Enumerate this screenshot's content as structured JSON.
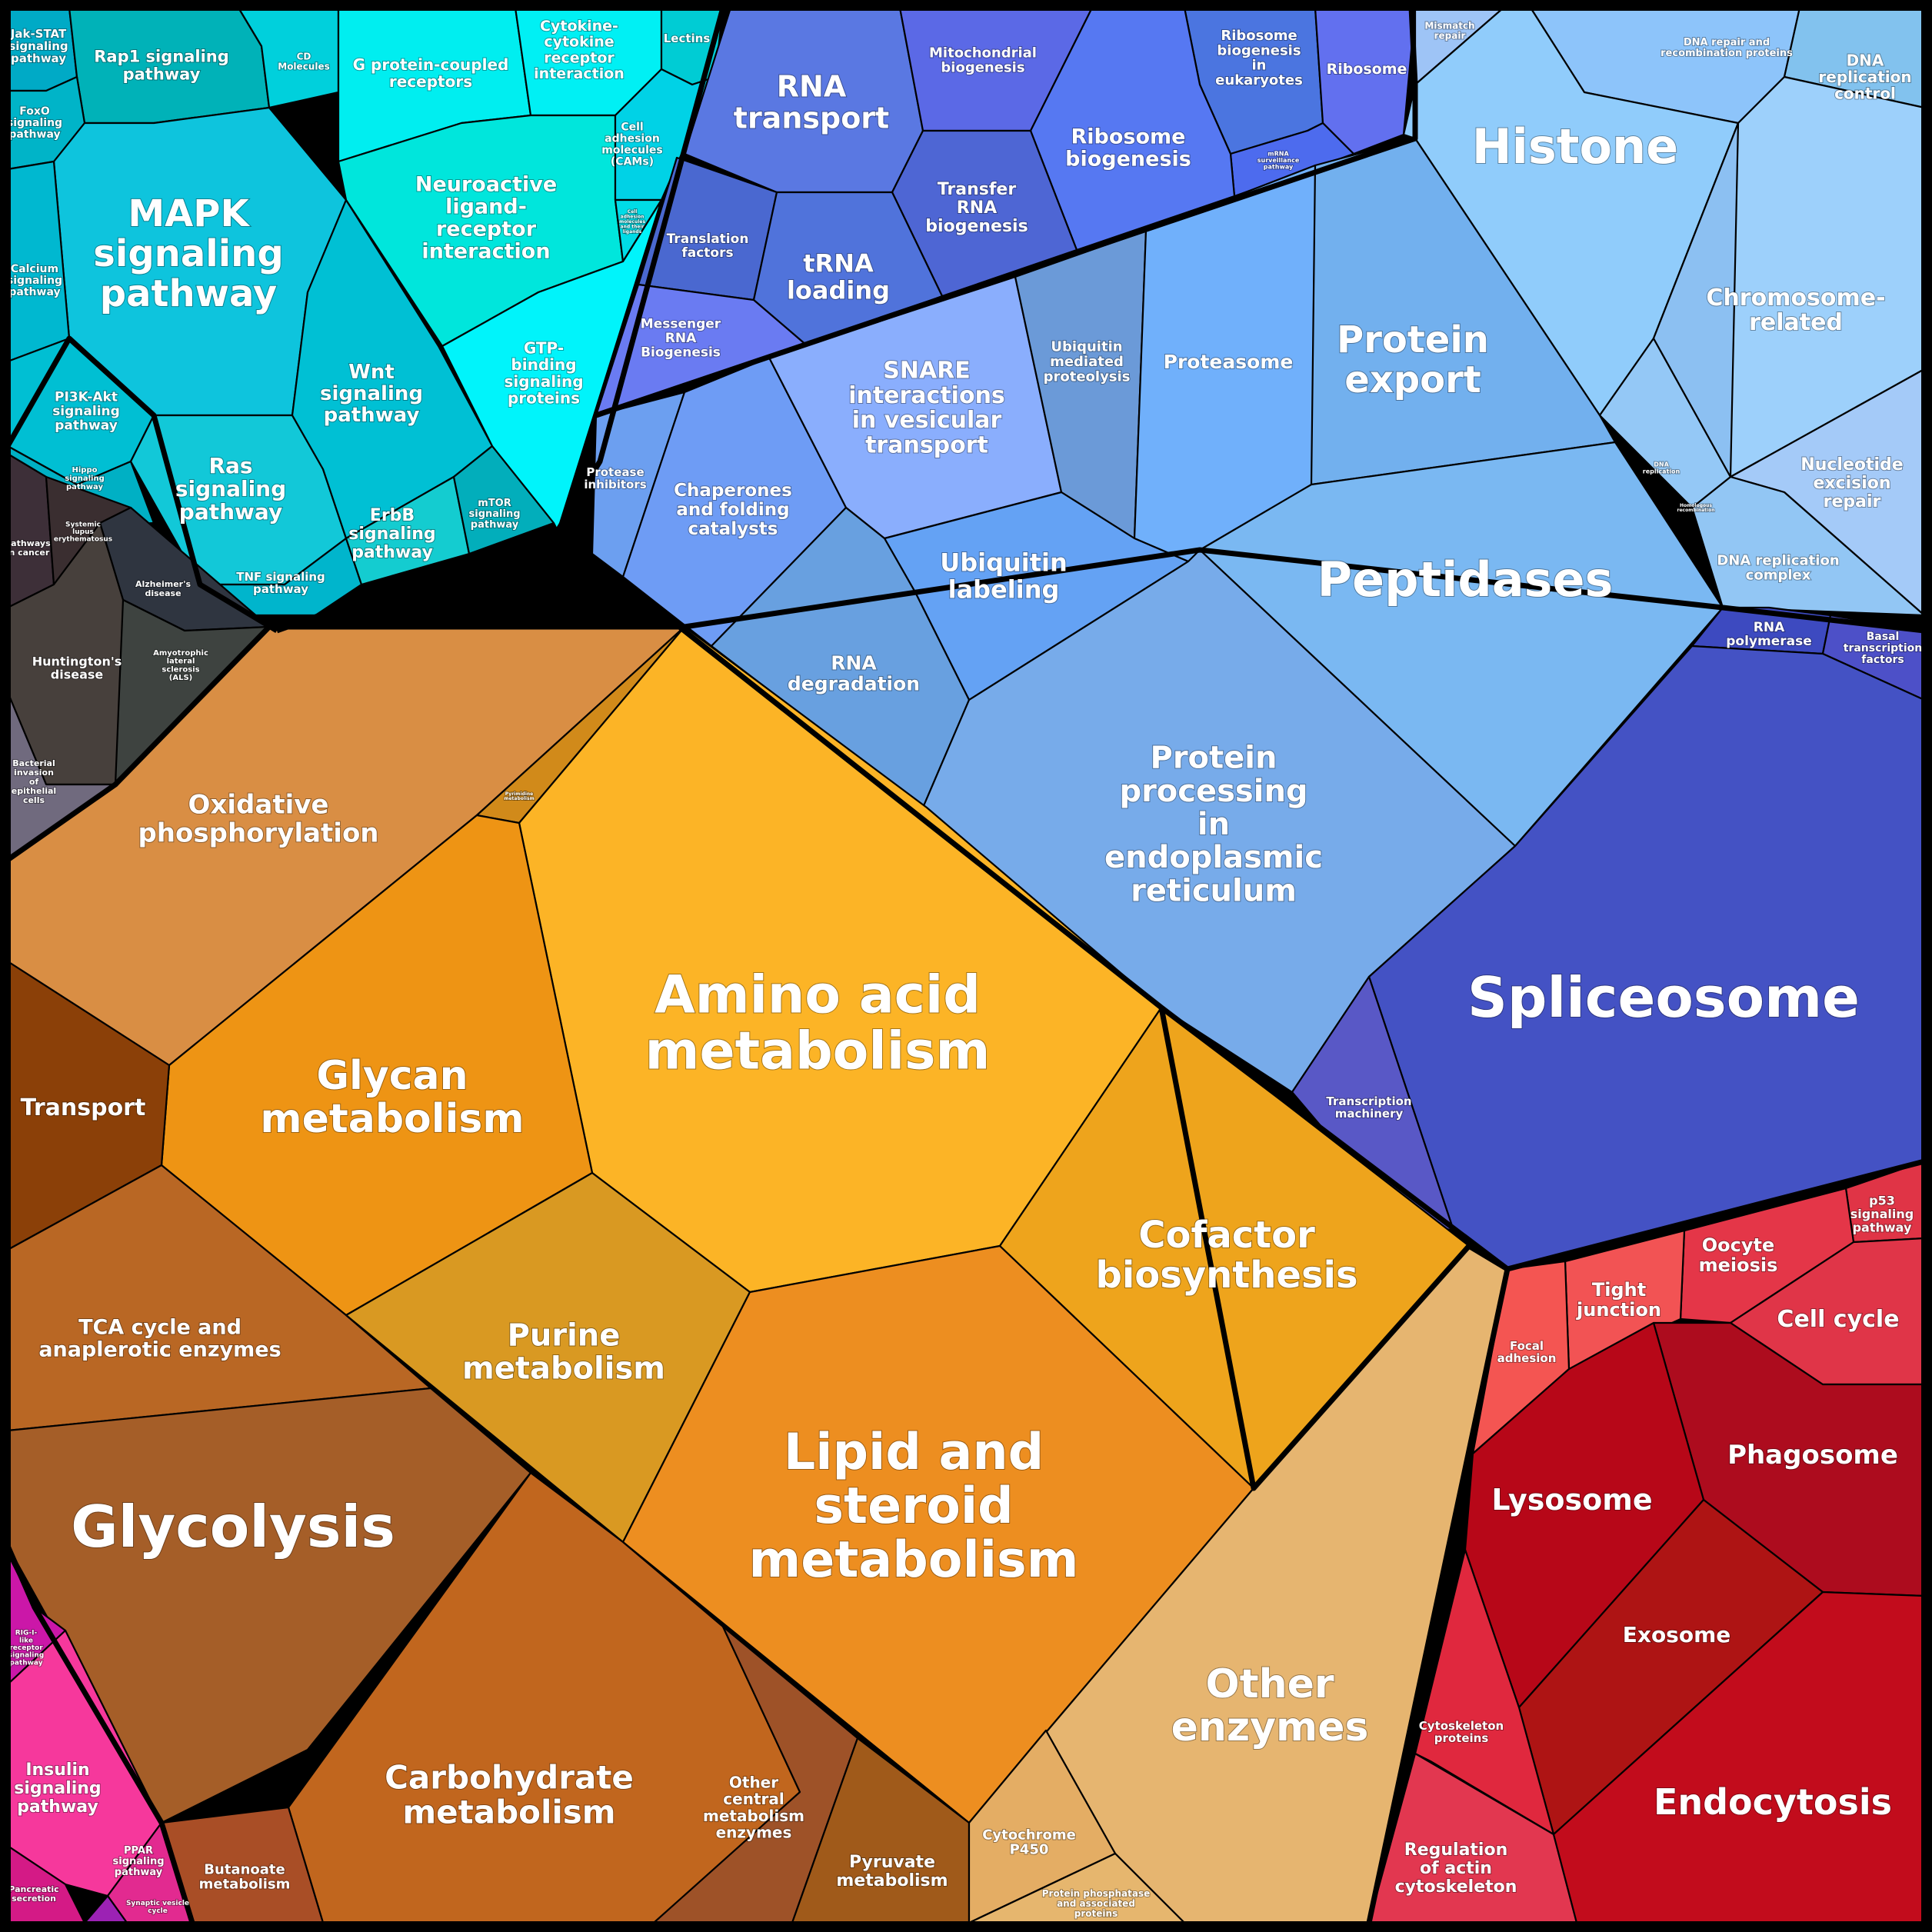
{
  "diagram": {
    "groups": [
      {
        "id": "signaling",
        "color": "#00c9d9"
      },
      {
        "id": "disease",
        "color": "#3a3a3a"
      },
      {
        "id": "genetic-information-processing",
        "color": "#5b7fe6"
      },
      {
        "id": "metabolism",
        "color": "#f0a020"
      },
      {
        "id": "cellular-processes",
        "color": "#c0101e"
      },
      {
        "id": "organismal-systems",
        "color": "#f030a0"
      }
    ],
    "regions": [
      {
        "key": "jak_stat",
        "lines": [
          "Jak-STAT",
          "signaling",
          "pathway"
        ],
        "color": "#00aac6"
      },
      {
        "key": "rap1",
        "lines": [
          "Rap1 signaling",
          "pathway"
        ],
        "color": "#00b2b8"
      },
      {
        "key": "foxo",
        "lines": [
          "FoxO",
          "signaling",
          "pathway"
        ],
        "color": "#00b4c8"
      },
      {
        "key": "mapk",
        "lines": [
          "MAPK",
          "signaling",
          "pathway"
        ],
        "color": "#0ec4dd"
      },
      {
        "key": "calcium",
        "lines": [
          "Calcium",
          "signaling",
          "pathway"
        ],
        "color": "#00b8d0"
      },
      {
        "key": "pi3k",
        "lines": [
          "PI3K-Akt",
          "signaling",
          "pathway"
        ],
        "color": "#00bfd3"
      },
      {
        "key": "hippo",
        "lines": [
          "Hippo",
          "signaling",
          "pathway"
        ],
        "color": "#00b0c4"
      },
      {
        "key": "ras",
        "lines": [
          "Ras",
          "signaling",
          "pathway"
        ],
        "color": "#12c8d8"
      },
      {
        "key": "wnt",
        "lines": [
          "Wnt",
          "signaling",
          "pathway"
        ],
        "color": "#00c0d4"
      },
      {
        "key": "tnf",
        "lines": [
          "TNF signaling",
          "pathway"
        ],
        "color": "#00b5cc"
      },
      {
        "key": "erbb",
        "lines": [
          "ErbB",
          "signaling",
          "pathway"
        ],
        "color": "#14ccd0"
      },
      {
        "key": "mtor",
        "lines": [
          "mTOR",
          "signaling",
          "pathway"
        ],
        "color": "#02aebb"
      },
      {
        "key": "cd",
        "lines": [
          "CD",
          "Molecules"
        ],
        "color": "#00d0dc"
      },
      {
        "key": "gpcr",
        "lines": [
          "G protein-coupled",
          "receptors"
        ],
        "color": "#00eef0"
      },
      {
        "key": "cytokine",
        "lines": [
          "Cytokine-",
          "cytokine",
          "receptor",
          "interaction"
        ],
        "color": "#00f0f4"
      },
      {
        "key": "lectins",
        "lines": [
          "Lectins"
        ],
        "color": "#00ccd4"
      },
      {
        "key": "neuroactive",
        "lines": [
          "Neuroactive",
          "ligand-",
          "receptor",
          "interaction"
        ],
        "color": "#00e6dc"
      },
      {
        "key": "cam",
        "lines": [
          "Cell",
          "adhesion",
          "molecules",
          "(CAMs)"
        ],
        "color": "#00d2e6"
      },
      {
        "key": "cell_adh_small",
        "lines": [
          "Cell",
          "adhesion",
          "molecules",
          "and their",
          "ligands"
        ],
        "color": "#00dce6"
      },
      {
        "key": "gtp",
        "lines": [
          "GTP-",
          "binding",
          "signaling",
          "proteins"
        ],
        "color": "#00f4fb"
      },
      {
        "key": "pathways_cancer",
        "lines": [
          "Pathways",
          "in cancer"
        ],
        "color": "#3d2f38"
      },
      {
        "key": "lupus",
        "lines": [
          "Systemic",
          "lupus",
          "erythematosus"
        ],
        "color": "#3a2e30"
      },
      {
        "key": "alzheimer",
        "lines": [
          "Alzheimer's",
          "disease"
        ],
        "color": "#2f3540"
      },
      {
        "key": "huntington",
        "lines": [
          "Huntington's",
          "disease"
        ],
        "color": "#47403c"
      },
      {
        "key": "als",
        "lines": [
          "Amyotrophic",
          "lateral",
          "sclerosis",
          "(ALS)"
        ],
        "color": "#3e4340"
      },
      {
        "key": "bacterial",
        "lines": [
          "Bacterial",
          "invasion",
          "of",
          "epithelial",
          "cells"
        ],
        "color": "#706a7e"
      },
      {
        "key": "rna_transport",
        "lines": [
          "RNA",
          "transport"
        ],
        "color": "#5a78e2"
      },
      {
        "key": "mito_bio",
        "lines": [
          "Mitochondrial",
          "biogenesis"
        ],
        "color": "#5b69e6"
      },
      {
        "key": "ribo_bio_euk",
        "lines": [
          "Ribosome",
          "biogenesis",
          "in",
          "eukaryotes"
        ],
        "color": "#4b75e0"
      },
      {
        "key": "ribosome",
        "lines": [
          "Ribosome"
        ],
        "color": "#6270ef"
      },
      {
        "key": "mrna_surv",
        "lines": [
          "mRNA",
          "surveillance",
          "pathway"
        ],
        "color": "#4d6bee"
      },
      {
        "key": "ribo_bio",
        "lines": [
          "Ribosome",
          "biogenesis"
        ],
        "color": "#5678f2"
      },
      {
        "key": "trna_bio",
        "lines": [
          "Transfer",
          "RNA",
          "biogenesis"
        ],
        "color": "#4e66d4"
      },
      {
        "key": "translation",
        "lines": [
          "Translation",
          "factors"
        ],
        "color": "#4a68d0"
      },
      {
        "key": "trna_load",
        "lines": [
          "tRNA",
          "loading"
        ],
        "color": "#5073db"
      },
      {
        "key": "mrna_bio",
        "lines": [
          "Messenger",
          "RNA",
          "Biogenesis"
        ],
        "color": "#6a7bf2"
      },
      {
        "key": "mismatch",
        "lines": [
          "Mismatch",
          "repair"
        ],
        "color": "#9ec4f6"
      },
      {
        "key": "dna_repair_recomb",
        "lines": [
          "DNA repair and",
          "recombination proteins"
        ],
        "color": "#8dc4fa"
      },
      {
        "key": "dna_rep_ctrl",
        "lines": [
          "DNA",
          "replication",
          "control"
        ],
        "color": "#82c2ee"
      },
      {
        "key": "histone",
        "lines": [
          "Histone"
        ],
        "color": "#90ccfb"
      },
      {
        "key": "chromosome",
        "lines": [
          "Chromosome-",
          "related"
        ],
        "color": "#9dd0fb"
      },
      {
        "key": "nucleotide_exc",
        "lines": [
          "Nucleotide",
          "excision",
          "repair"
        ],
        "color": "#a4caf8"
      },
      {
        "key": "dna_rep_cplx",
        "lines": [
          "DNA replication",
          "complex"
        ],
        "color": "#92c6f4"
      },
      {
        "key": "dna_repl_small",
        "lines": [
          "DNA",
          "replication"
        ],
        "color": "#94c8f6"
      },
      {
        "key": "homol_recomb",
        "lines": [
          "Homologous",
          "recombination"
        ],
        "color": "#8cc0f2"
      },
      {
        "key": "protease_inh",
        "lines": [
          "Protease",
          "inhibitors"
        ],
        "color": "#6c9ff0"
      },
      {
        "key": "chaperones",
        "lines": [
          "Chaperones",
          "and folding",
          "catalysts"
        ],
        "color": "#6e9cf5"
      },
      {
        "key": "snare",
        "lines": [
          "SNARE",
          "interactions",
          "in vesicular",
          "transport"
        ],
        "color": "#8aaefd"
      },
      {
        "key": "ubq_prot",
        "lines": [
          "Ubiquitin",
          "mediated",
          "proteolysis"
        ],
        "color": "#6b9ad8"
      },
      {
        "key": "proteasome",
        "lines": [
          "Proteasome"
        ],
        "color": "#70b0fb"
      },
      {
        "key": "protein_export",
        "lines": [
          "Protein",
          "export"
        ],
        "color": "#72b0ee"
      },
      {
        "key": "ubq_label",
        "lines": [
          "Ubiquitin",
          "labeling"
        ],
        "color": "#64a2f4"
      },
      {
        "key": "rna_degr",
        "lines": [
          "RNA",
          "degradation"
        ],
        "color": "#68a0e0"
      },
      {
        "key": "peptidases",
        "lines": [
          "Peptidases"
        ],
        "color": "#7ab8f2"
      },
      {
        "key": "protein_er",
        "lines": [
          "Protein",
          "processing",
          "in",
          "endoplasmic",
          "reticulum"
        ],
        "color": "#77abea"
      },
      {
        "key": "rna_pol",
        "lines": [
          "RNA",
          "polymerase"
        ],
        "color": "#3d4ac0"
      },
      {
        "key": "basal",
        "lines": [
          "Basal",
          "transcription",
          "factors"
        ],
        "color": "#4d50c8"
      },
      {
        "key": "spliceosome",
        "lines": [
          "Spliceosome"
        ],
        "color": "#4452c4"
      },
      {
        "key": "transcr_mach",
        "lines": [
          "Transcription",
          "machinery"
        ],
        "color": "#5958c6"
      },
      {
        "key": "oxphos",
        "lines": [
          "Oxidative",
          "phosphorylation"
        ],
        "color": "#d98e44"
      },
      {
        "key": "pyrimidine",
        "lines": [
          "Pyrimidine",
          "metabolism"
        ],
        "color": "#d18a1a"
      },
      {
        "key": "amino_acid",
        "lines": [
          "Amino acid",
          "metabolism"
        ],
        "color": "#fcb426"
      },
      {
        "key": "glycan",
        "lines": [
          "Glycan",
          "metabolism"
        ],
        "color": "#ee9414"
      },
      {
        "key": "transport",
        "lines": [
          "Transport"
        ],
        "color": "#8b4008"
      },
      {
        "key": "tca",
        "lines": [
          "TCA cycle and",
          "anaplerotic enzymes"
        ],
        "color": "#b96724"
      },
      {
        "key": "purine",
        "lines": [
          "Purine",
          "metabolism"
        ],
        "color": "#d99922"
      },
      {
        "key": "cofactor",
        "lines": [
          "Cofactor",
          "biosynthesis"
        ],
        "color": "#eea41c"
      },
      {
        "key": "lipid",
        "lines": [
          "Lipid and",
          "steroid",
          "metabolism"
        ],
        "color": "#ed8e20"
      },
      {
        "key": "glycolysis",
        "lines": [
          "Glycolysis"
        ],
        "color": "#a55e28"
      },
      {
        "key": "other_enz",
        "lines": [
          "Other",
          "enzymes"
        ],
        "color": "#e6b570"
      },
      {
        "key": "carbohydrate",
        "lines": [
          "Carbohydrate",
          "metabolism"
        ],
        "color": "#c1661e"
      },
      {
        "key": "other_central",
        "lines": [
          "Other",
          "central",
          "metabolism",
          "enzymes"
        ],
        "color": "#9e5228"
      },
      {
        "key": "pyruvate",
        "lines": [
          "Pyruvate",
          "metabolism"
        ],
        "color": "#a05a1a"
      },
      {
        "key": "butanoate",
        "lines": [
          "Butanoate",
          "metabolism"
        ],
        "color": "#a94e26"
      },
      {
        "key": "cyp450",
        "lines": [
          "Cytochrome",
          "P450"
        ],
        "color": "#e4ad64"
      },
      {
        "key": "phosphatase",
        "lines": [
          "Protein phosphatase",
          "and associated",
          "proteins"
        ],
        "color": "#e6b66e"
      },
      {
        "key": "p53",
        "lines": [
          "p53",
          "signaling",
          "pathway"
        ],
        "color": "#e03446"
      },
      {
        "key": "oocyte",
        "lines": [
          "Oocyte",
          "meiosis"
        ],
        "color": "#e43648"
      },
      {
        "key": "tight_junction",
        "lines": [
          "Tight",
          "junction"
        ],
        "color": "#f25354"
      },
      {
        "key": "focal",
        "lines": [
          "Focal",
          "adhesion"
        ],
        "color": "#f45552"
      },
      {
        "key": "cell_cycle",
        "lines": [
          "Cell cycle"
        ],
        "color": "#e03548"
      },
      {
        "key": "phagosome",
        "lines": [
          "Phagosome"
        ],
        "color": "#ad0c1e"
      },
      {
        "key": "lysosome",
        "lines": [
          "Lysosome"
        ],
        "color": "#b70718"
      },
      {
        "key": "exosome",
        "lines": [
          "Exosome"
        ],
        "color": "#ae1414"
      },
      {
        "key": "cytoskel",
        "lines": [
          "Cytoskeleton",
          "proteins"
        ],
        "color": "#e0283e"
      },
      {
        "key": "actin",
        "lines": [
          "Regulation",
          "of actin",
          "cytoskeleton"
        ],
        "color": "#e23750"
      },
      {
        "key": "endocytosis",
        "lines": [
          "Endocytosis"
        ],
        "color": "#c20c1c"
      },
      {
        "key": "rig",
        "lines": [
          "RIG-I-",
          "like",
          "receptor",
          "signaling",
          "pathway"
        ],
        "color": "#cb17a8"
      },
      {
        "key": "insulin",
        "lines": [
          "Insulin",
          "signaling",
          "pathway"
        ],
        "color": "#f6389c"
      },
      {
        "key": "ppar",
        "lines": [
          "PPAR",
          "signaling",
          "pathway"
        ],
        "color": "#e22a90"
      },
      {
        "key": "pancreatic",
        "lines": [
          "Pancreatic",
          "secretion"
        ],
        "color": "#d41a86"
      },
      {
        "key": "synaptic",
        "lines": [
          "Synaptic vesicle",
          "cycle"
        ],
        "color": "#9c22b4"
      }
    ]
  }
}
